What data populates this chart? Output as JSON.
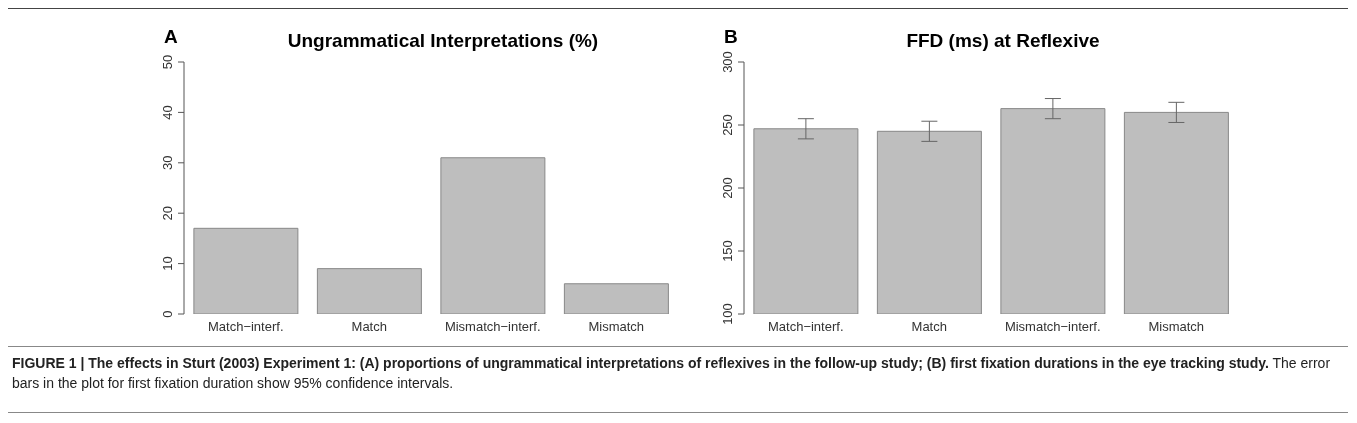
{
  "chart_data": [
    {
      "type": "bar",
      "title": "Ungrammatical Interpretations (%)",
      "annotations": [
        "A"
      ],
      "categories": [
        "Match−interf.",
        "Match",
        "Mismatch−interf.",
        "Mismatch"
      ],
      "values": [
        17,
        9,
        31,
        6
      ],
      "color": "#bebebe",
      "ylim": [
        0,
        50
      ],
      "yticks": [
        0,
        10,
        20,
        30,
        40,
        50
      ],
      "grid": false
    },
    {
      "type": "bar",
      "title": "FFD (ms) at Reflexive",
      "annotations": [
        "B",
        "FIGURE 1 | The effects in Sturt (2003) Experiment 1: (A) proportions of ungrammatical interpretations of reflexives in the follow-up study; (B) first fixation durations in the eye tracking study.",
        "The error bars in the plot for first fixation duration show 95% confidence intervals."
      ],
      "categories": [
        "Match−interf.",
        "Match",
        "Mismatch−interf.",
        "Mismatch"
      ],
      "values": [
        247,
        245,
        263,
        260
      ],
      "errors": [
        [
          239,
          255
        ],
        [
          237,
          253
        ],
        [
          255,
          271
        ],
        [
          252,
          268
        ]
      ],
      "color": "#bebebe",
      "ylim": [
        100,
        300
      ],
      "yticks": [
        100,
        150,
        200,
        250,
        300
      ],
      "grid": false
    }
  ]
}
